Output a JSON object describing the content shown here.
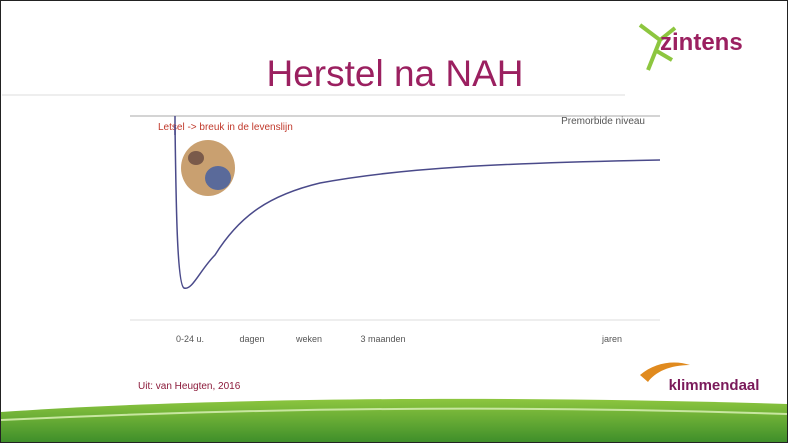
{
  "slide": {
    "title": "Herstel na NAH",
    "logo_top": "zintens",
    "figure": {
      "caption_left": "Letsel -> breuk in de levenslijn",
      "caption_right": "Premorbide niveau",
      "x_labels": [
        "0-24 u.",
        "dagen",
        "weken",
        "3 maanden",
        "jaren"
      ]
    },
    "source": "Uit: van Heugten, 2016",
    "logo_bottom": "klimmendaal"
  }
}
